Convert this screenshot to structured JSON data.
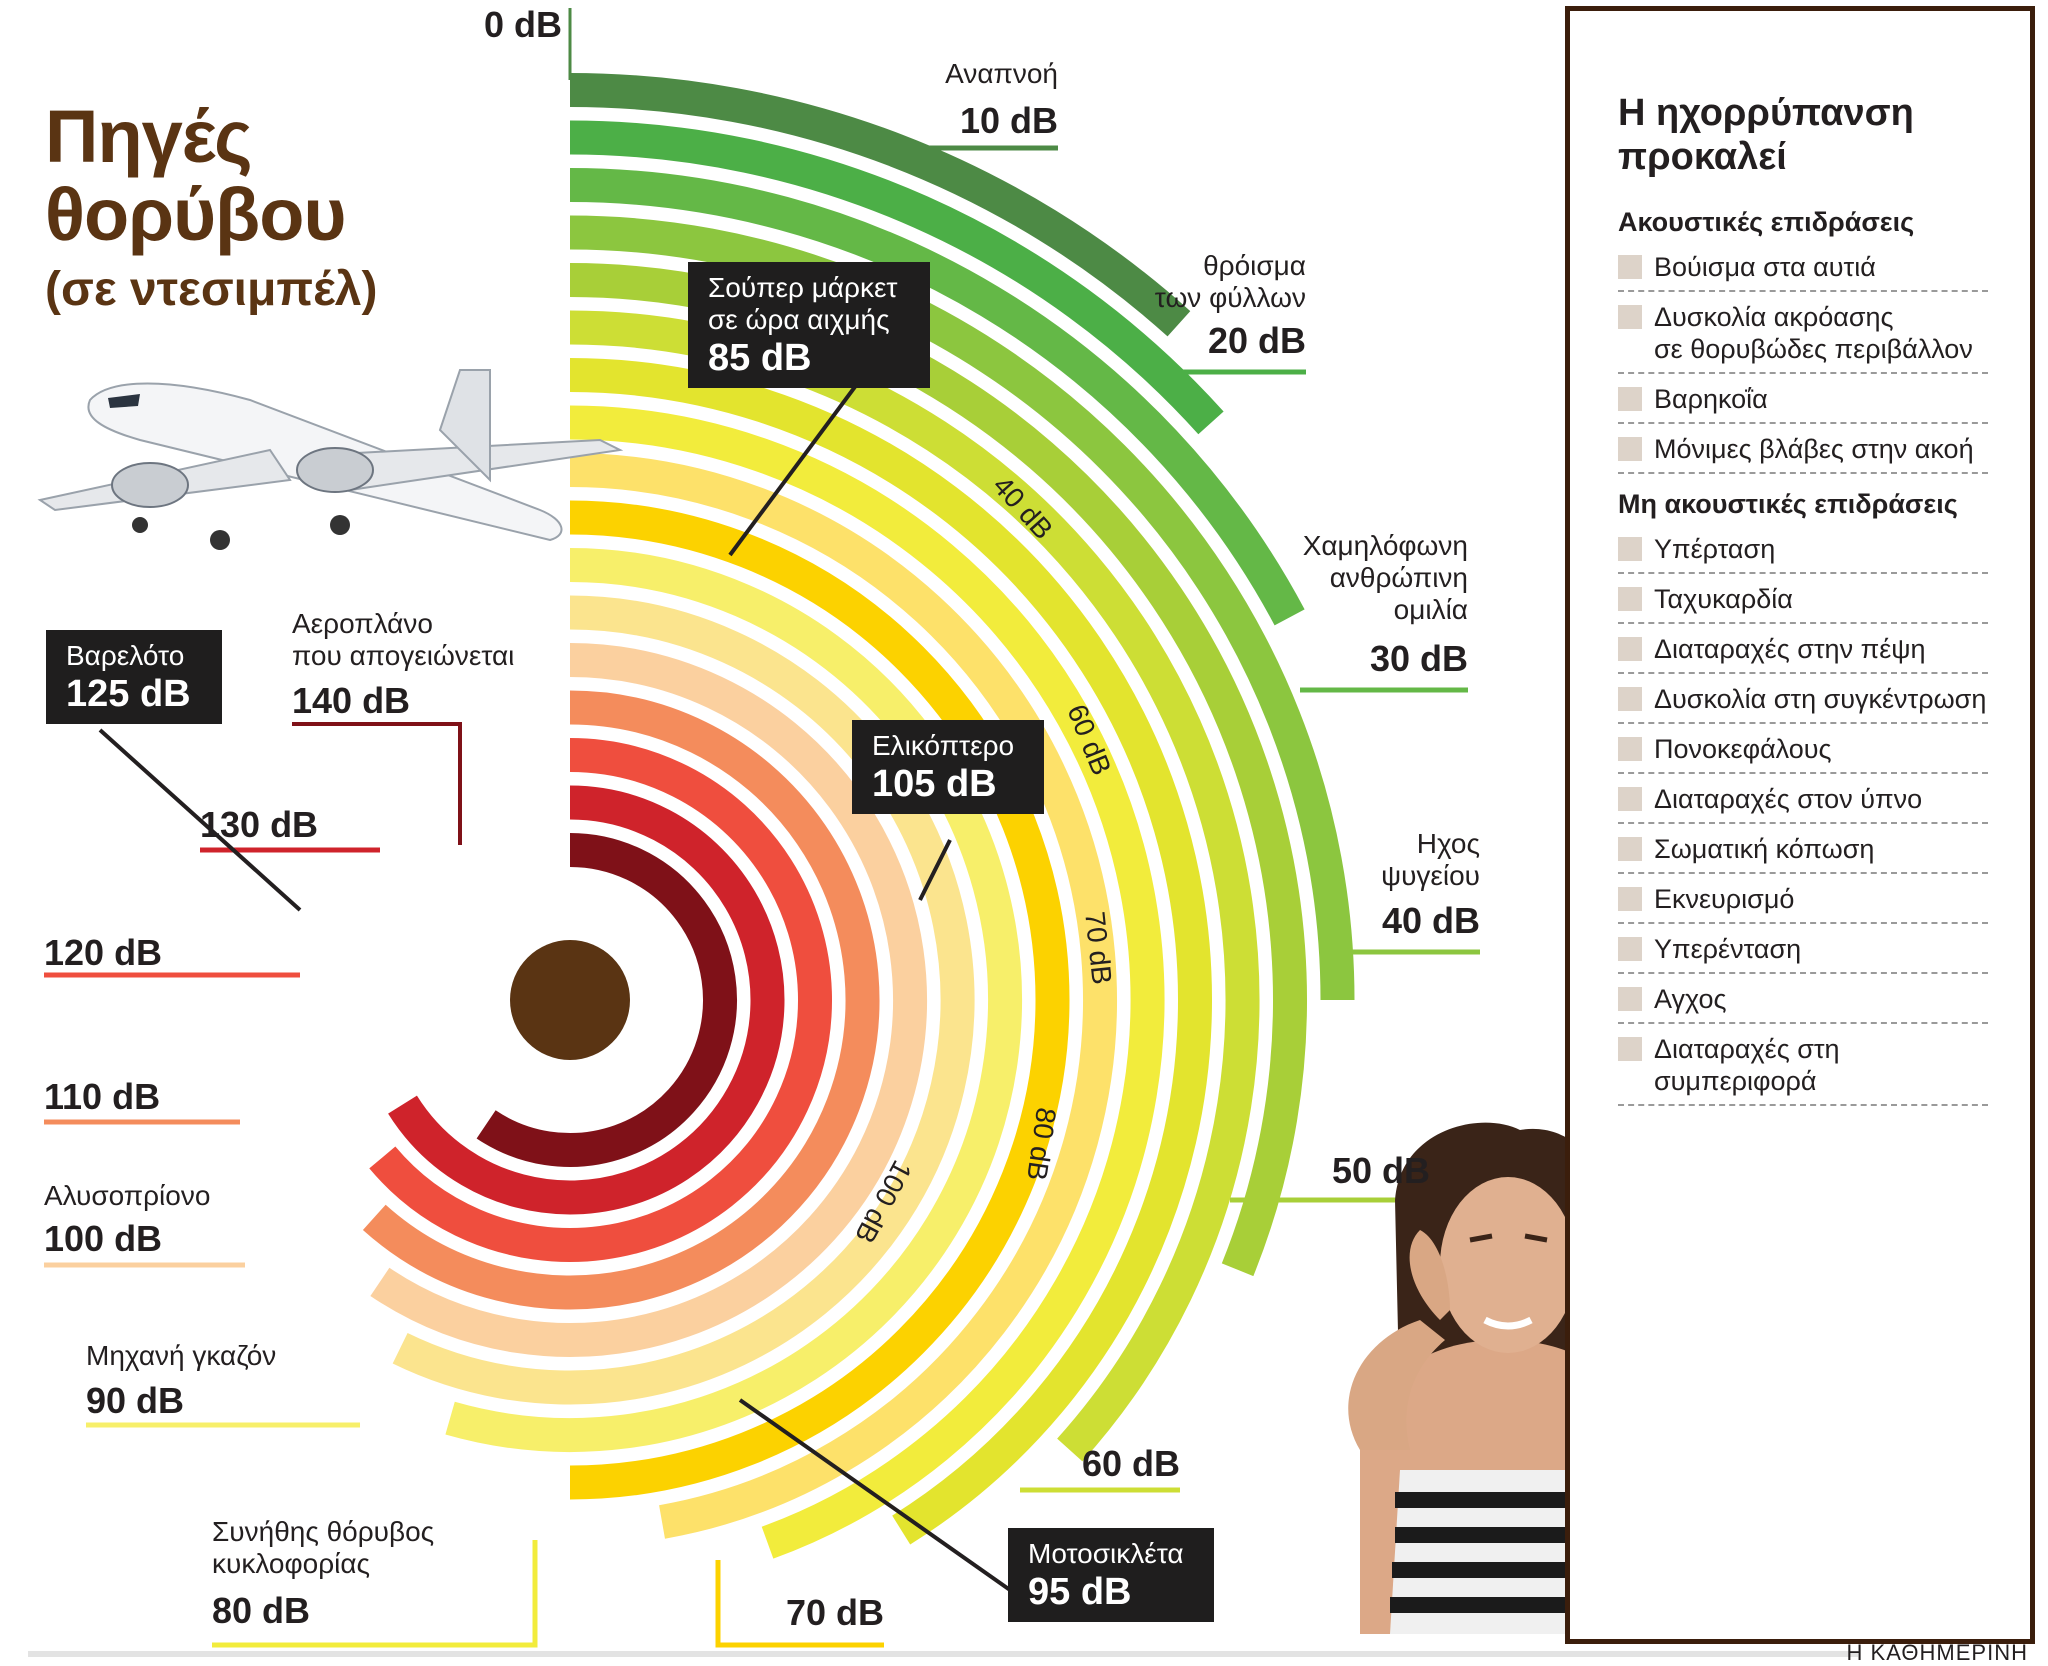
{
  "title": {
    "line1": "Πηγές",
    "line2": "θορύβου",
    "subtitle": "(σε ντεσιμπέλ)"
  },
  "scale": {
    "tick_40": "40 dB",
    "tick_60": "60 dB",
    "tick_70": "70 dB",
    "tick_80": "80 dB",
    "tick_100": "100 dB"
  },
  "top_label": "0 dB",
  "sources": {
    "breathing": {
      "label": "Αναπνοή",
      "value": "10 dB"
    },
    "leaves": {
      "label1": "θρόισμα",
      "label2": "των φύλλων",
      "value": "20 dB"
    },
    "whisper": {
      "label1": "Χαμηλόφωνη",
      "label2": "ανθρώπινη",
      "label3": "ομιλία",
      "value": "30 dB"
    },
    "fridge": {
      "label1": "Ηχος",
      "label2": "ψυγείου",
      "value": "40 dB"
    },
    "v50": {
      "value": "50 dB"
    },
    "v60": {
      "value": "60 dB"
    },
    "v70": {
      "value": "70 dB"
    },
    "traffic": {
      "label1": "Συνήθης θόρυβος",
      "label2": "κυκλοφορίας",
      "value": "80 dB"
    },
    "lawnmower": {
      "label": "Μηχανή γκαζόν",
      "value": "90 dB"
    },
    "chainsaw": {
      "label": "Αλυσοπρίονο",
      "value": "100 dB"
    },
    "v110": {
      "value": "110 dB"
    },
    "v120": {
      "value": "120 dB"
    },
    "v130": {
      "value": "130 dB"
    },
    "airplane": {
      "label1": "Αεροπλάνο",
      "label2": "που απογειώνεται",
      "value": "140 dB"
    }
  },
  "callouts": {
    "supermarket": {
      "label1": "Σούπερ μάρκετ",
      "label2": "σε ώρα αιχμής",
      "value": "85 dB"
    },
    "helicopter": {
      "label": "Ελικόπτερο",
      "value": "105 dB"
    },
    "fireworks": {
      "label": "Βαρελότο",
      "value": "125 dB"
    },
    "motorcycle": {
      "label": "Μοτοσικλέτα",
      "value": "95 dB"
    }
  },
  "panel": {
    "title1": "Η ηχορρύπανση",
    "title2": "προκαλεί",
    "acoustic_heading": "Ακουστικές επιδράσεις",
    "acoustic": [
      "Βούισμα στα αυτιά",
      "Δυσκολία ακρόασης",
      "σε θορυβώδες περιβάλλον",
      "Βαρηκοΐα",
      "Μόνιμες βλάβες στην ακοή"
    ],
    "nonacoustic_heading": "Μη ακουστικές επιδράσεις",
    "nonacoustic": [
      "Υπέρταση",
      "Ταχυκαρδία",
      "Διαταραχές στην πέψη",
      "Δυσκολία στη συγκέντρωση",
      "Πονοκεφάλους",
      "Διαταραχές στον ύπνο",
      "Σωματική κόπωση",
      "Εκνευρισμό",
      "Υπερένταση",
      "Αγχος",
      "Διαταραχές στη",
      "συμπεριφορά"
    ]
  },
  "footer": "Η ΚΑΘΗΜΕΡΙΝΗ",
  "colors": {
    "rings": [
      "#4d8a45",
      "#4caf47",
      "#64b847",
      "#8cc63f",
      "#a8cf38",
      "#cdde35",
      "#e3e42e",
      "#f2ec3c",
      "#fde16a",
      "#fcd200",
      "#f7ef6a",
      "#fbe48e",
      "#fbd09f",
      "#f48c5c",
      "#ef4e3e",
      "#cf232b",
      "#7f1118"
    ],
    "title": "#5a3413",
    "center": "#5a3413"
  }
}
